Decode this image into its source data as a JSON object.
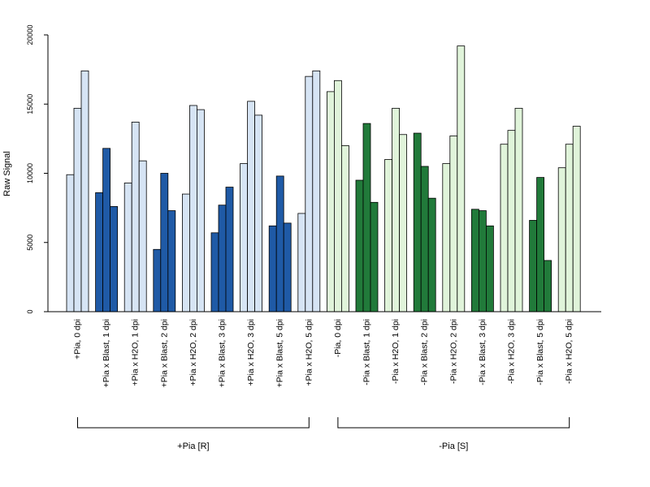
{
  "chart_data": {
    "type": "bar",
    "title": "",
    "xlabel": "",
    "ylabel": "Raw Signal",
    "ylim": [
      0,
      20000
    ],
    "yticks": [
      0,
      5000,
      10000,
      15000,
      20000
    ],
    "grid": false,
    "colors": {
      "pia_plus_light": "#d6e4f4",
      "pia_plus_dark": "#1f5aa6",
      "pia_minus_light": "#e0f4da",
      "pia_minus_dark": "#217a3a",
      "bar_stroke": "#000000"
    },
    "groups": [
      {
        "label": "+Pia, 0 dpi",
        "values": [
          9900,
          14700,
          17400
        ],
        "color_key": "pia_plus_light"
      },
      {
        "label": "+Pia x Blast, 1 dpi",
        "values": [
          8600,
          11800,
          7600
        ],
        "color_key": "pia_plus_dark"
      },
      {
        "label": "+Pia x H2O, 1 dpi",
        "values": [
          9300,
          13700,
          10900
        ],
        "color_key": "pia_plus_light"
      },
      {
        "label": "+Pia x Blast, 2 dpi",
        "values": [
          4500,
          10000,
          7300
        ],
        "color_key": "pia_plus_dark"
      },
      {
        "label": "+Pia x H2O, 2 dpi",
        "values": [
          8500,
          14900,
          14600
        ],
        "color_key": "pia_plus_light"
      },
      {
        "label": "+Pia x Blast, 3 dpi",
        "values": [
          5700,
          7700,
          9000
        ],
        "color_key": "pia_plus_dark"
      },
      {
        "label": "+Pia x H2O, 3 dpi",
        "values": [
          10700,
          15200,
          14200
        ],
        "color_key": "pia_plus_light"
      },
      {
        "label": "+Pia x Blast, 5 dpi",
        "values": [
          6200,
          9800,
          6400
        ],
        "color_key": "pia_plus_dark"
      },
      {
        "label": "+Pia x H2O, 5 dpi",
        "values": [
          7100,
          17000,
          17400
        ],
        "color_key": "pia_plus_light"
      },
      {
        "label": "-Pia, 0 dpi",
        "values": [
          15900,
          16700,
          12000
        ],
        "color_key": "pia_minus_light"
      },
      {
        "label": "-Pia x Blast, 1 dpi",
        "values": [
          9500,
          13600,
          7900
        ],
        "color_key": "pia_minus_dark"
      },
      {
        "label": "-Pia x H2O, 1 dpi",
        "values": [
          11000,
          14700,
          12800
        ],
        "color_key": "pia_minus_light"
      },
      {
        "label": "-Pia x Blast, 2 dpi",
        "values": [
          12900,
          10500,
          8200
        ],
        "color_key": "pia_minus_dark"
      },
      {
        "label": "-Pia x H2O, 2 dpi",
        "values": [
          10700,
          12700,
          19200
        ],
        "color_key": "pia_minus_light"
      },
      {
        "label": "-Pia x Blast, 3 dpi",
        "values": [
          7400,
          7300,
          6200
        ],
        "color_key": "pia_minus_dark"
      },
      {
        "label": "-Pia x H2O, 3 dpi",
        "values": [
          12100,
          13100,
          14700
        ],
        "color_key": "pia_minus_light"
      },
      {
        "label": "-Pia x Blast, 5 dpi",
        "values": [
          6600,
          9700,
          3700
        ],
        "color_key": "pia_minus_dark"
      },
      {
        "label": "-Pia x H2O, 5 dpi",
        "values": [
          10400,
          12100,
          13400
        ],
        "color_key": "pia_minus_light"
      }
    ],
    "brackets": [
      {
        "label": "+Pia [R]",
        "from_group": 0,
        "to_group": 8
      },
      {
        "label": "-Pia [S]",
        "from_group": 9,
        "to_group": 17
      }
    ]
  }
}
